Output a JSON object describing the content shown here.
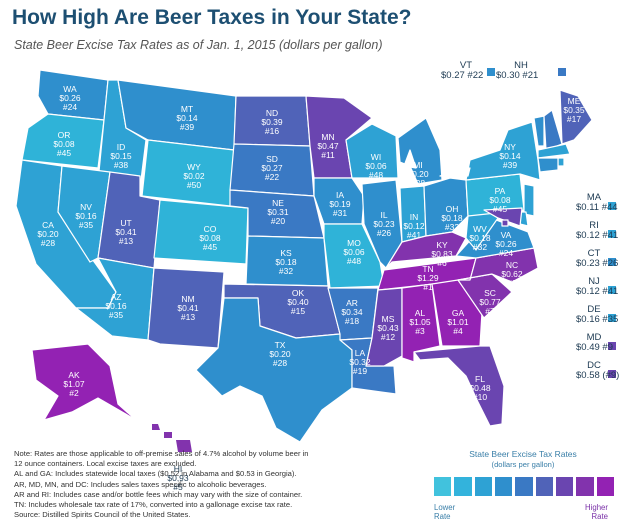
{
  "title": "How High Are Beer Taxes in Your State?",
  "subtitle": "State Beer Excise Tax Rates as of Jan. 1, 2015 (dollars per gallon)",
  "colors": {
    "c1": "#2fb3d8",
    "c2": "#2ea2d4",
    "c3": "#2f8fcd",
    "c4": "#3a79c4",
    "c5": "#5063b8",
    "c6": "#6a45b0",
    "c7": "#8233ad",
    "c8": "#9322b3"
  },
  "states": [
    {
      "abbr": "WA",
      "rate": "$0.26",
      "rank": "#24"
    },
    {
      "abbr": "OR",
      "rate": "$0.08",
      "rank": "#45"
    },
    {
      "abbr": "ID",
      "rate": "$0.15",
      "rank": "#38"
    },
    {
      "abbr": "MT",
      "rate": "$0.14",
      "rank": "#39"
    },
    {
      "abbr": "WY",
      "rate": "$0.02",
      "rank": "#50"
    },
    {
      "abbr": "CA",
      "rate": "$0.20",
      "rank": "#28"
    },
    {
      "abbr": "NV",
      "rate": "$0.16",
      "rank": "#35"
    },
    {
      "abbr": "UT",
      "rate": "$0.41",
      "rank": "#13"
    },
    {
      "abbr": "CO",
      "rate": "$0.08",
      "rank": "#45"
    },
    {
      "abbr": "AZ",
      "rate": "$0.16",
      "rank": "#35"
    },
    {
      "abbr": "NM",
      "rate": "$0.41",
      "rank": "#13"
    },
    {
      "abbr": "ND",
      "rate": "$0.39",
      "rank": "#16"
    },
    {
      "abbr": "SD",
      "rate": "$0.27",
      "rank": "#22"
    },
    {
      "abbr": "NE",
      "rate": "$0.31",
      "rank": "#20"
    },
    {
      "abbr": "KS",
      "rate": "$0.18",
      "rank": "#32"
    },
    {
      "abbr": "OK",
      "rate": "$0.40",
      "rank": "#15"
    },
    {
      "abbr": "TX",
      "rate": "$0.20",
      "rank": "#28"
    },
    {
      "abbr": "MN",
      "rate": "$0.47",
      "rank": "#11"
    },
    {
      "abbr": "IA",
      "rate": "$0.19",
      "rank": "#31"
    },
    {
      "abbr": "MO",
      "rate": "$0.06",
      "rank": "#48"
    },
    {
      "abbr": "AR",
      "rate": "$0.34",
      "rank": "#18"
    },
    {
      "abbr": "LA",
      "rate": "$0.32",
      "rank": "#19"
    },
    {
      "abbr": "WI",
      "rate": "$0.06",
      "rank": "#48"
    },
    {
      "abbr": "IL",
      "rate": "$0.23",
      "rank": "#26"
    },
    {
      "abbr": "MI",
      "rate": "$0.20",
      "rank": "#28"
    },
    {
      "abbr": "IN",
      "rate": "$0.12",
      "rank": "#41"
    },
    {
      "abbr": "OH",
      "rate": "$0.18",
      "rank": "#32"
    },
    {
      "abbr": "KY",
      "rate": "$0.83",
      "rank": "#6"
    },
    {
      "abbr": "TN",
      "rate": "$1.29",
      "rank": "#1"
    },
    {
      "abbr": "MS",
      "rate": "$0.43",
      "rank": "#12"
    },
    {
      "abbr": "AL",
      "rate": "$1.05",
      "rank": "#3"
    },
    {
      "abbr": "GA",
      "rate": "$1.01",
      "rank": "#4"
    },
    {
      "abbr": "FL",
      "rate": "$0.48",
      "rank": "#10"
    },
    {
      "abbr": "SC",
      "rate": "$0.77",
      "rank": "#7"
    },
    {
      "abbr": "NC",
      "rate": "$0.62",
      "rank": "#8"
    },
    {
      "abbr": "VA",
      "rate": "$0.26",
      "rank": "#24"
    },
    {
      "abbr": "WV",
      "rate": "$0.18",
      "rank": "#32"
    },
    {
      "abbr": "PA",
      "rate": "$0.08",
      "rank": "#45"
    },
    {
      "abbr": "NY",
      "rate": "$0.14",
      "rank": "#39"
    },
    {
      "abbr": "ME",
      "rate": "$0.35",
      "rank": "#17"
    },
    {
      "abbr": "AK",
      "rate": "$1.07",
      "rank": "#2"
    },
    {
      "abbr": "HI",
      "rate": "$0.93",
      "rank": "#5"
    }
  ],
  "callouts": [
    {
      "abbr": "VT",
      "rate": "$0.27 #22"
    },
    {
      "abbr": "NH",
      "rate": "$0.30 #21"
    },
    {
      "abbr": "MA",
      "rate": "$0.11 #44"
    },
    {
      "abbr": "RI",
      "rate": "$0.12 #41"
    },
    {
      "abbr": "CT",
      "rate": "$0.23 #26"
    },
    {
      "abbr": "NJ",
      "rate": "$0.12 #41"
    },
    {
      "abbr": "DE",
      "rate": "$0.16 #35"
    },
    {
      "abbr": "MD",
      "rate": "$0.49 #9"
    },
    {
      "abbr": "DC",
      "rate": "$0.58 (#9)"
    }
  ],
  "notes": [
    "Note: Rates are those applicable to off-premise sales of 4.7% alcohol by volume beer in",
    "12 ounce containers. Local excise taxes are excluded.",
    "AL and GA: Includes statewide local taxes ($0.52 in Alabama and $0.53 in Georgia).",
    "AR, MD, MN, and DC: Includes sales taxes specific to alcoholic beverages.",
    "AR and RI: Includes case and/or bottle fees which may vary with the size of container.",
    "TN: Includes wholesale tax rate of 17%, converted into a gallonage excise tax rate.",
    "Source: Distilled Spirits Council of the United States."
  ],
  "legend": {
    "title": "State Beer Excise Tax Rates",
    "subtitle": "(dollars per gallon)",
    "low_line1": "Lower",
    "low_line2": "Rate",
    "high_line1": "Higher",
    "high_line2": "Rate",
    "scale": [
      "#41c2dd",
      "#33b3dc",
      "#2ea2d4",
      "#2f8fcd",
      "#3a79c4",
      "#5063b8",
      "#6a45b0",
      "#8233ad",
      "#9322b3"
    ]
  }
}
